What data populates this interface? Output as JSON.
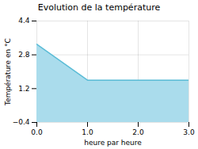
{
  "chart_data": {
    "type": "area",
    "title": "Evolution de la température",
    "x_label": "heure par heure",
    "y_label": "Température en °C",
    "x": [
      0,
      1,
      3
    ],
    "values": [
      3.3,
      1.6,
      1.6
    ],
    "xlim": [
      0,
      3
    ],
    "ylim": [
      -0.4,
      4.4
    ],
    "xticks": [
      0,
      1,
      2,
      3
    ],
    "yticks": [
      -0.4,
      1.2,
      2.8,
      4.4
    ],
    "colors": [
      "#aadcec",
      "#5bbcd6"
    ],
    "grid": true
  }
}
